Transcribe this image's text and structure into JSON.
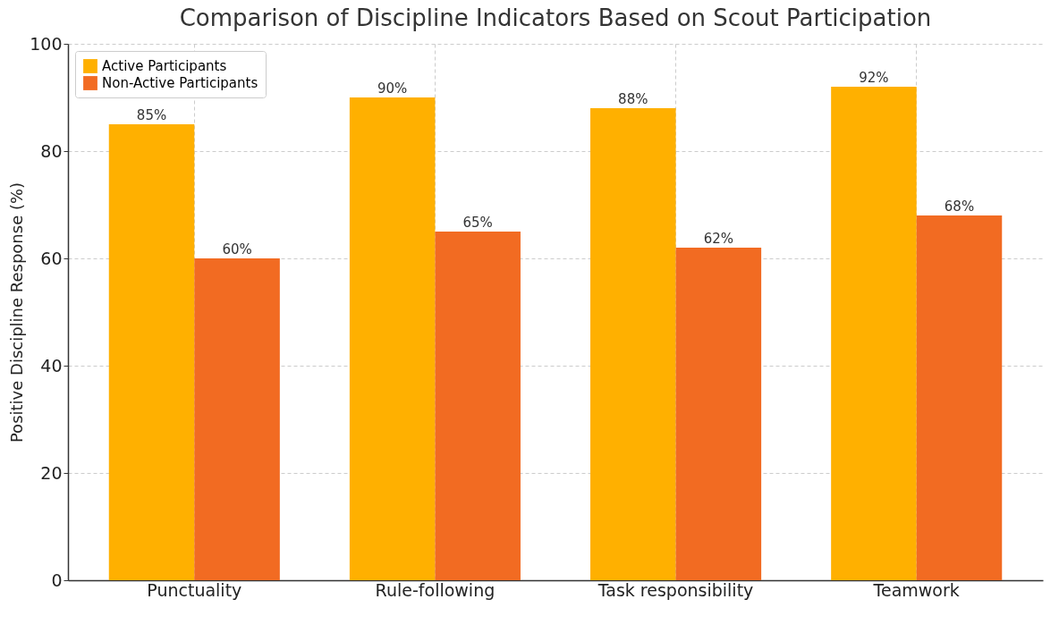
{
  "chart_data": {
    "type": "bar",
    "title": "Comparison of Discipline Indicators Based on Scout Participation",
    "ylabel": "Positive Discipline Response (%)",
    "categories": [
      "Punctuality",
      "Rule-following",
      "Task responsibility",
      "Teamwork"
    ],
    "series": [
      {
        "name": "Active Participants",
        "color": "#ffb000",
        "values": [
          85,
          90,
          88,
          92
        ],
        "value_labels": [
          "85%",
          "90%",
          "88%",
          "92%"
        ]
      },
      {
        "name": "Non-Active Participants",
        "color": "#f26b22",
        "values": [
          60,
          65,
          62,
          68
        ],
        "value_labels": [
          "60%",
          "65%",
          "62%",
          "68%"
        ]
      }
    ],
    "ylim": [
      0,
      100
    ],
    "yticks": [
      0,
      20,
      40,
      60,
      80,
      100
    ],
    "grid": true,
    "legend": "top left"
  }
}
